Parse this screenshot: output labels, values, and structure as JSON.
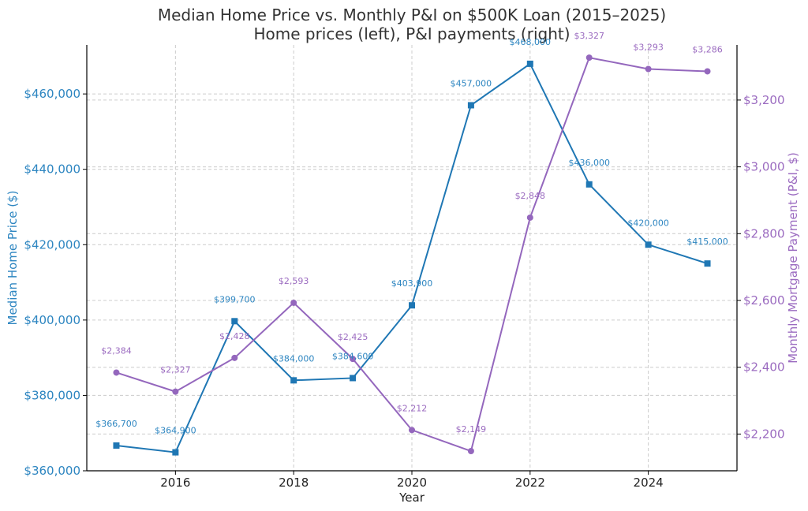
{
  "chart_data": {
    "type": "line",
    "title": "Median Home Price vs. Monthly P&I on $500K Loan (2015–2025)",
    "subtitle": "Home prices (left), P&I payments (right)",
    "xlabel": "Year",
    "ylabel_left": "Median Home Price ($)",
    "ylabel_right": "Monthly Mortgage Payment (P&I, $)",
    "x": [
      2015,
      2016,
      2017,
      2018,
      2019,
      2020,
      2021,
      2022,
      2023,
      2024,
      2025
    ],
    "xlim": [
      2014.5,
      2025.5
    ],
    "x_ticks": [
      2016,
      2018,
      2020,
      2022,
      2024
    ],
    "x_tick_labels": [
      "2016",
      "2018",
      "2020",
      "2022",
      "2024"
    ],
    "ylim_left": [
      360000,
      473000
    ],
    "y_ticks_left": [
      360000,
      380000,
      400000,
      420000,
      440000,
      460000
    ],
    "y_tick_labels_left": [
      "$360,000",
      "$380,000",
      "$400,000",
      "$420,000",
      "$440,000",
      "$460,000"
    ],
    "ylim_right": [
      2090,
      3365
    ],
    "y_ticks_right": [
      2200,
      2400,
      2600,
      2800,
      3000,
      3200
    ],
    "y_tick_labels_right": [
      "$2,200",
      "$2,400",
      "$2,600",
      "$2,800",
      "$3,000",
      "$3,200"
    ],
    "grid": true,
    "series": [
      {
        "axis": "left",
        "marker": "square",
        "color": "#1f77b4",
        "label_color": "#2e86c1",
        "values": [
          366700,
          364900,
          399700,
          384000,
          384600,
          403900,
          457000,
          468000,
          436000,
          420000,
          415000
        ],
        "labels": [
          "$366,700",
          "$364,900",
          "$399,700",
          "$384,000",
          "$384,600",
          "$403,900",
          "$457,000",
          "$468,000",
          "$436,000",
          "$420,000",
          "$415,000"
        ]
      },
      {
        "axis": "right",
        "marker": "circle",
        "color": "#9467bd",
        "label_color": "#9b6bc0",
        "values": [
          2384,
          2327,
          2428,
          2593,
          2425,
          2212,
          2149,
          2848,
          3327,
          3293,
          3286
        ],
        "labels": [
          "$2,384",
          "$2,327",
          "$2,428",
          "$2,593",
          "$2,425",
          "$2,212",
          "$2,149",
          "$2,848",
          "$3,327",
          "$3,293",
          "$3,286"
        ]
      }
    ]
  }
}
